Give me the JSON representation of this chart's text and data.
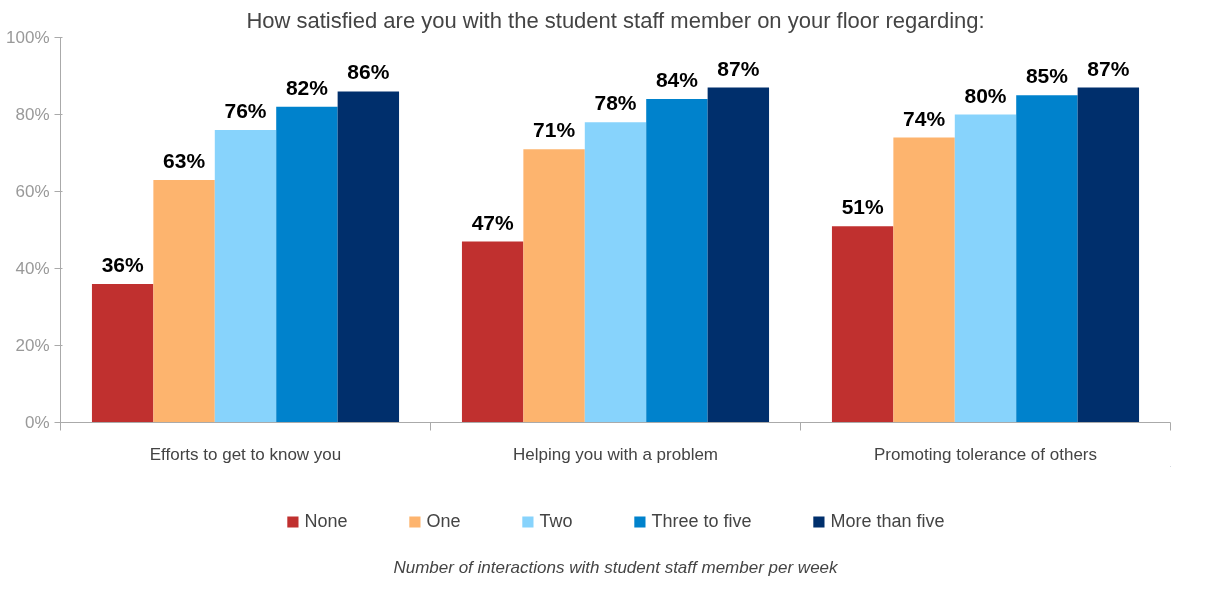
{
  "chart_data": {
    "type": "bar",
    "title": "How satisfied are you with the student staff member on your floor regarding:",
    "categories": [
      "Efforts to get to know you",
      "Helping you with a problem",
      "Promoting tolerance of others"
    ],
    "series": [
      {
        "name": "None",
        "color": "#c0302f",
        "values": [
          36,
          47,
          51
        ],
        "value_labels": [
          "36%",
          "47%",
          "51%"
        ]
      },
      {
        "name": "One",
        "color": "#fdb46e",
        "values": [
          63,
          71,
          74
        ],
        "value_labels": [
          "63%",
          "71%",
          "74%"
        ]
      },
      {
        "name": "Two",
        "color": "#87d3fc",
        "values": [
          76,
          78,
          80
        ],
        "value_labels": [
          "76%",
          "78%",
          "80%"
        ]
      },
      {
        "name": "Three to five",
        "color": "#0082cc",
        "values": [
          82,
          84,
          85
        ],
        "value_labels": [
          "82%",
          "84%",
          "85%"
        ]
      },
      {
        "name": "More than five",
        "color": "#002f6c",
        "values": [
          86,
          87,
          87
        ],
        "value_labels": [
          "86%",
          "87%",
          "87%"
        ]
      }
    ],
    "ylim": [
      0,
      100
    ],
    "yticks": [
      {
        "value": 0,
        "label": "0%"
      },
      {
        "value": 20,
        "label": "20%"
      },
      {
        "value": 40,
        "label": "40%"
      },
      {
        "value": 60,
        "label": "60%"
      },
      {
        "value": 80,
        "label": "80%"
      },
      {
        "value": 100,
        "label": "100%"
      }
    ],
    "legend": "bottom",
    "legend_title": "Number of interactions with student staff member per week",
    "grid": false
  }
}
